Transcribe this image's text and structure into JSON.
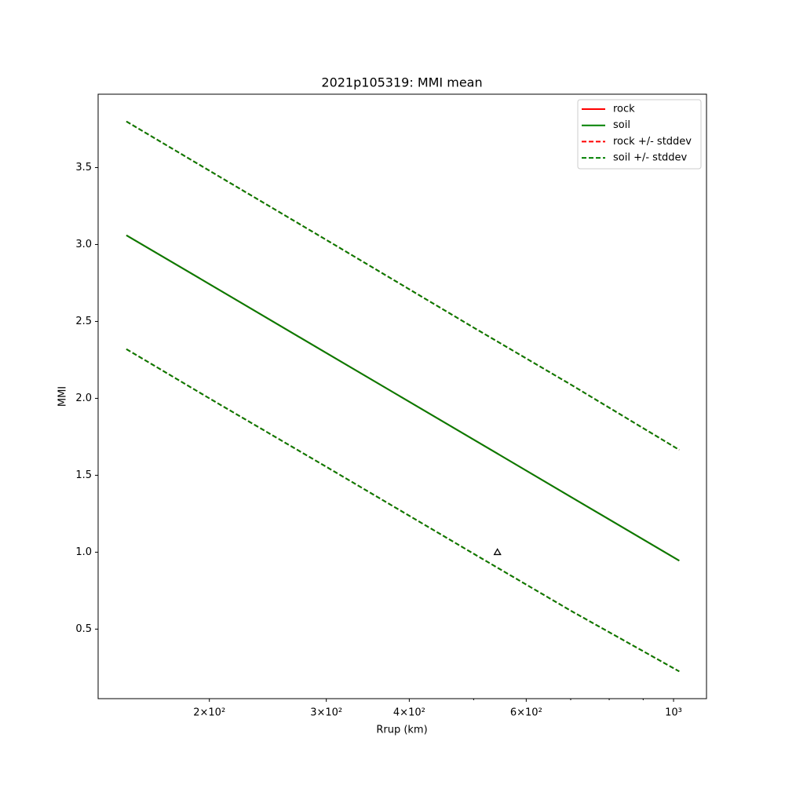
{
  "chart_data": {
    "type": "line",
    "title": "2021p105319: MMI mean",
    "x_label": "Rrup (km)",
    "y_label": "MMI",
    "x_scale": "log",
    "xlim": [
      136,
      1121
    ],
    "ylim": [
      0.048,
      3.977
    ],
    "xticks": [
      {
        "value": 200,
        "label": "2×10²"
      },
      {
        "value": 300,
        "label": "3×10²"
      },
      {
        "value": 400,
        "label": "4×10²"
      },
      {
        "value": 600,
        "label": "6×10²"
      },
      {
        "value": 1000,
        "label": "10³"
      }
    ],
    "xminorticks": [
      500,
      700,
      800,
      900
    ],
    "yticks": [
      0.5,
      {
        "value": 1,
        "label": "1.0"
      },
      1.5,
      {
        "value": 2,
        "label": "2.0"
      },
      2.5,
      {
        "value": 3,
        "label": "3.0"
      },
      3.5
    ],
    "legend": "upper right",
    "x": [
      150,
      200,
      300,
      500,
      700,
      1020
    ],
    "series": [
      {
        "name": "rock",
        "color": "#ff0000",
        "dashed": false,
        "values": [
          3.06,
          2.743,
          2.295,
          1.732,
          1.36,
          0.945
        ]
      },
      {
        "name": "soil",
        "color": "#008000",
        "dashed": false,
        "values": [
          3.06,
          2.743,
          2.295,
          1.732,
          1.36,
          0.945
        ]
      },
      {
        "name": "rock +/- stddev",
        "color": "#ff0000",
        "dashed": true,
        "upper": [
          3.8,
          3.48,
          3.03,
          2.46,
          2.09,
          1.665
        ],
        "lower": [
          2.32,
          2.0,
          1.555,
          0.99,
          0.62,
          0.225
        ]
      },
      {
        "name": "soil +/- stddev",
        "color": "#008000",
        "dashed": true,
        "upper": [
          3.8,
          3.48,
          3.03,
          2.46,
          2.09,
          1.665
        ],
        "lower": [
          2.32,
          2.0,
          1.555,
          0.99,
          0.62,
          0.225
        ]
      }
    ],
    "markers": {
      "color": "#000000",
      "x": [
        543
      ],
      "y": [
        1
      ]
    }
  }
}
